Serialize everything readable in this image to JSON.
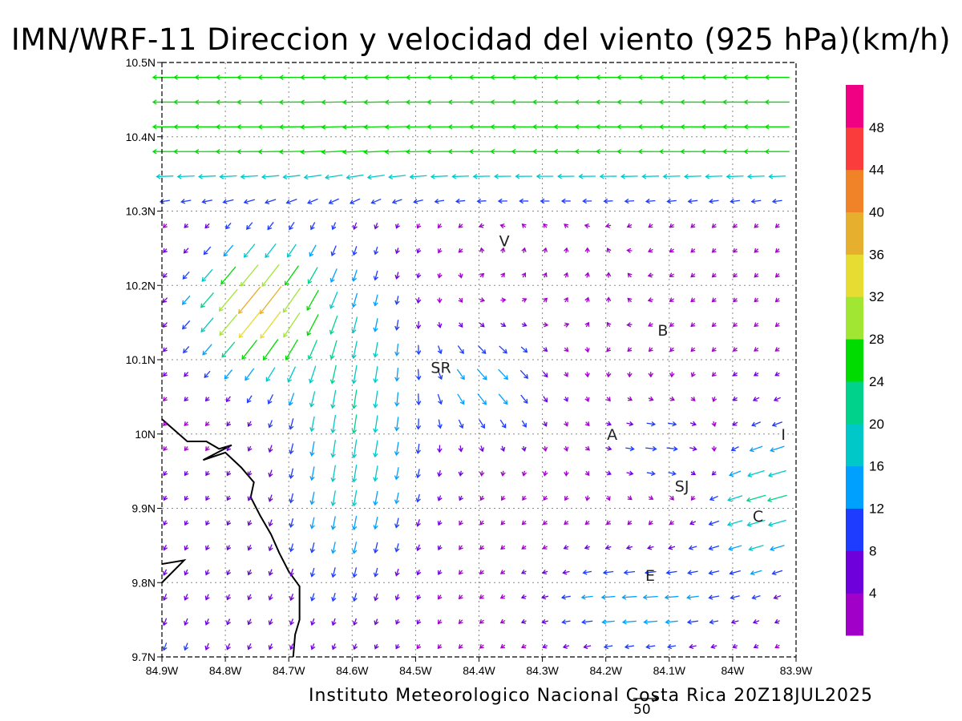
{
  "title": "IMN/WRF-11 Direccion y velocidad del viento (925 hPa)(km/h)",
  "footer": "Instituto Meteorologico Nacional Costa Rica 20Z18JUL2025",
  "reference_vector": {
    "label": "50",
    "value": 50
  },
  "map": {
    "lon_range": [
      -84.9,
      -83.9
    ],
    "lat_range": [
      9.7,
      10.5
    ],
    "grid": "dotted",
    "lon_ticks": [
      {
        "value": -84.9,
        "label": "84.9W"
      },
      {
        "value": -84.8,
        "label": "84.8W"
      },
      {
        "value": -84.7,
        "label": "84.7W"
      },
      {
        "value": -84.6,
        "label": "84.6W"
      },
      {
        "value": -84.5,
        "label": "84.5W"
      },
      {
        "value": -84.4,
        "label": "84.4W"
      },
      {
        "value": -84.3,
        "label": "84.3W"
      },
      {
        "value": -84.2,
        "label": "84.2W"
      },
      {
        "value": -84.1,
        "label": "84.1W"
      },
      {
        "value": -84.0,
        "label": "84W"
      },
      {
        "value": -83.9,
        "label": "83.9W"
      }
    ],
    "lat_ticks": [
      {
        "value": 9.7,
        "label": "9.7N"
      },
      {
        "value": 9.8,
        "label": "9.8N"
      },
      {
        "value": 9.9,
        "label": "9.9N"
      },
      {
        "value": 10.0,
        "label": "10N"
      },
      {
        "value": 10.1,
        "label": "10.1N"
      },
      {
        "value": 10.2,
        "label": "10.2N"
      },
      {
        "value": 10.3,
        "label": "10.3N"
      },
      {
        "value": 10.4,
        "label": "10.4N"
      },
      {
        "value": 10.5,
        "label": "10.5N"
      }
    ],
    "cities": [
      {
        "label": "V",
        "lon": -84.36,
        "lat": 10.26
      },
      {
        "label": "B",
        "lon": -84.11,
        "lat": 10.14
      },
      {
        "label": "SR",
        "lon": -84.46,
        "lat": 10.09
      },
      {
        "label": "A",
        "lon": -84.19,
        "lat": 10.0
      },
      {
        "label": "I",
        "lon": -83.92,
        "lat": 10.0
      },
      {
        "label": "SJ",
        "lon": -84.08,
        "lat": 9.93
      },
      {
        "label": "C",
        "lon": -83.96,
        "lat": 9.89
      },
      {
        "label": "E",
        "lon": -84.13,
        "lat": 9.81
      }
    ],
    "coastline": [
      [
        -84.9,
        10.02
      ],
      [
        -84.86,
        9.99
      ],
      [
        -84.83,
        9.99
      ],
      [
        -84.81,
        9.98
      ],
      [
        -84.79,
        9.985
      ],
      [
        -84.835,
        9.965
      ],
      [
        -84.8,
        9.975
      ],
      [
        -84.775,
        9.955
      ],
      [
        -84.755,
        9.935
      ],
      [
        -84.76,
        9.915
      ],
      [
        -84.745,
        9.89
      ],
      [
        -84.728,
        9.865
      ],
      [
        -84.715,
        9.84
      ],
      [
        -84.7,
        9.815
      ],
      [
        -84.683,
        9.795
      ],
      [
        -84.683,
        9.75
      ],
      [
        -84.69,
        9.73
      ],
      [
        -84.693,
        9.7
      ]
    ],
    "coastline_south": [
      [
        -84.9,
        9.825
      ],
      [
        -84.865,
        9.83
      ],
      [
        -84.9,
        9.8
      ]
    ]
  },
  "colorbar": {
    "levels": [
      4,
      8,
      12,
      16,
      20,
      24,
      28,
      32,
      36,
      40,
      44,
      48
    ],
    "colors": [
      "#a000c8",
      "#6e00dc",
      "#1e3cff",
      "#00a0ff",
      "#00c8c8",
      "#00d28c",
      "#00dc00",
      "#a0e632",
      "#e6dc32",
      "#e6af2d",
      "#f08228",
      "#fa3c3c",
      "#f00082"
    ]
  },
  "wind_description": "Gridded wind vectors at 925 hPa: strong easterlies (20-28 km/h) along the northern edge, NE flow 28-44 km/h over the northwest highlands near 84.75W 10.15N, southward channel flow 16-24 km/h west of SR, weak variable flow (<8 km/h) over the southwest and south-central areas, easterlies 16-28 km/h on the east side near I and C."
}
